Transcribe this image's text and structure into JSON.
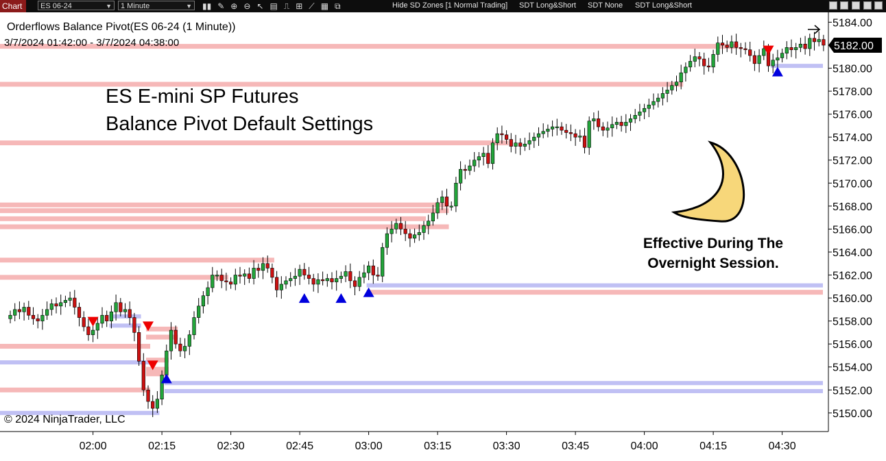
{
  "toolbar": {
    "tab": "Chart",
    "instrument": "ES 06-24",
    "interval": "1 Minute",
    "items": [
      "Hide SD Zones [1 Normal Trading]",
      "SDT Long&Short",
      "SDT None",
      "SDT Long&Short"
    ]
  },
  "header": {
    "indicator": "Orderflows Balance Pivot(ES 06-24 (1 Minute))",
    "range": "3/7/2024 01:42:00 - 3/7/2024 04:38:00"
  },
  "overlay": {
    "line1": "ES E-mini SP Futures",
    "line2": "Balance Pivot Default Settings",
    "note1": "Effective During The",
    "note2": "Overnight Session.",
    "copyright": "© 2024 NinjaTrader, LLC"
  },
  "colors": {
    "up_candle": "#22a53a",
    "down_candle": "#cc1111",
    "resistance_zone": "#f6b8b8",
    "support_zone": "#c0c0f4",
    "sell_marker": "#ee0000",
    "buy_marker": "#0000dd",
    "moon": "#f7d77a"
  },
  "chart_data": {
    "type": "candlestick",
    "ylim": [
      5148.5,
      5184.8
    ],
    "yticks": [
      5150,
      5152,
      5154,
      5156,
      5158,
      5160,
      5162,
      5164,
      5166,
      5168,
      5170,
      5172,
      5174,
      5176,
      5178,
      5180,
      5182,
      5184
    ],
    "ytick_labels": [
      "5150.00",
      "5152.00",
      "5154.00",
      "5156.00",
      "5158.00",
      "5160.00",
      "5162.00",
      "5164.00",
      "5166.00",
      "5168.00",
      "5170.00",
      "5172.00",
      "5174.00",
      "5176.00",
      "5178.00",
      "5180.00",
      "5182.00",
      "5184.00"
    ],
    "last_price": 5182.0,
    "last_price_label": "5182.00",
    "xtick_labels": [
      {
        "t": "02:00",
        "i": 18
      },
      {
        "t": "02:15",
        "i": 33
      },
      {
        "t": "02:30",
        "i": 48
      },
      {
        "t": "02:45",
        "i": 63
      },
      {
        "t": "03:00",
        "i": 78
      },
      {
        "t": "03:15",
        "i": 93
      },
      {
        "t": "03:30",
        "i": 108
      },
      {
        "t": "03:45",
        "i": 123
      },
      {
        "t": "04:00",
        "i": 138
      },
      {
        "t": "04:15",
        "i": 153
      },
      {
        "t": "04:30",
        "i": 168
      }
    ],
    "closes": [
      5158.5,
      5159.0,
      5158.8,
      5159.2,
      5158.5,
      5158.2,
      5158.0,
      5158.5,
      5159.0,
      5159.5,
      5159.3,
      5159.6,
      5159.8,
      5160.0,
      5159.2,
      5158.3,
      5157.5,
      5156.8,
      5157.2,
      5157.8,
      5158.5,
      5158.0,
      5158.8,
      5159.6,
      5158.8,
      5159.0,
      5158.3,
      5157.0,
      5154.5,
      5152.0,
      5151.0,
      5150.4,
      5151.2,
      5153.3,
      5155.4,
      5157.2,
      5156.0,
      5155.4,
      5155.8,
      5156.8,
      5158.3,
      5159.3,
      5160.2,
      5160.9,
      5162.0,
      5162.0,
      5161.5,
      5161.4,
      5161.2,
      5162.0,
      5161.9,
      5162.1,
      5161.7,
      5162.6,
      5162.4,
      5163.0,
      5162.6,
      5161.8,
      5160.7,
      5161.2,
      5161.5,
      5161.7,
      5161.9,
      5162.5,
      5162.0,
      5161.7,
      5161.2,
      5161.6,
      5161.5,
      5161.7,
      5161.4,
      5161.7,
      5161.9,
      5162.3,
      5161.5,
      5161.0,
      5161.8,
      5162.2,
      5162.8,
      5162.0,
      5161.9,
      5164.4,
      5165.6,
      5166.0,
      5166.5,
      5166.0,
      5165.6,
      5165.2,
      5165.5,
      5165.7,
      5166.3,
      5166.7,
      5167.4,
      5168.3,
      5168.8,
      5168.0,
      5168.0,
      5170.0,
      5171.2,
      5171.1,
      5171.5,
      5172.0,
      5172.3,
      5172.6,
      5171.7,
      5173.5,
      5174.3,
      5174.2,
      5173.8,
      5173.2,
      5173.5,
      5173.2,
      5173.4,
      5173.7,
      5174.0,
      5174.3,
      5174.5,
      5174.7,
      5174.9,
      5174.9,
      5174.6,
      5174.4,
      5174.3,
      5174.0,
      5174.1,
      5173.1,
      5175.4,
      5175.6,
      5174.9,
      5174.6,
      5174.8,
      5175.1,
      5175.3,
      5175.0,
      5175.3,
      5175.6,
      5175.9,
      5176.2,
      5176.5,
      5176.8,
      5177.1,
      5177.4,
      5177.8,
      5178.1,
      5178.5,
      5178.8,
      5179.6,
      5180.1,
      5180.6,
      5181.0,
      5180.8,
      5180.2,
      5180.1,
      5181.2,
      5182.2,
      5182.0,
      5181.8,
      5182.3,
      5181.8,
      5181.7,
      5181.6,
      5181.1,
      5180.4,
      5181.1,
      5181.7,
      5180.2,
      5180.7,
      5180.9,
      5181.3,
      5181.8,
      5181.6,
      5181.8,
      5182.1,
      5181.7,
      5182.6,
      5182.3,
      5182.5,
      5182.0
    ],
    "resistance_zones": [
      {
        "price": 5181.9,
        "from": 0,
        "to": 158
      },
      {
        "price": 5178.6,
        "from": 0,
        "to": 146
      },
      {
        "price": 5173.5,
        "from": 0,
        "to": 108
      },
      {
        "price": 5168.1,
        "from": 0,
        "to": 95
      },
      {
        "price": 5167.6,
        "from": 0,
        "to": 95
      },
      {
        "price": 5166.9,
        "from": 0,
        "to": 90
      },
      {
        "price": 5166.2,
        "from": 0,
        "to": 95
      },
      {
        "price": 5163.3,
        "from": 0,
        "to": 57
      },
      {
        "price": 5161.8,
        "from": 0,
        "to": 47
      },
      {
        "price": 5160.5,
        "from": 78,
        "to": 178
      },
      {
        "price": 5157.3,
        "from": 30,
        "to": 36
      },
      {
        "price": 5156.6,
        "from": 30,
        "to": 36
      },
      {
        "price": 5155.8,
        "from": 0,
        "to": 30
      },
      {
        "price": 5154.6,
        "from": 30,
        "to": 34
      },
      {
        "price": 5153.8,
        "from": 30,
        "to": 34
      },
      {
        "price": 5153.4,
        "from": 30,
        "to": 34
      },
      {
        "price": 5152.0,
        "from": 0,
        "to": 30
      }
    ],
    "support_zones": [
      {
        "price": 5180.2,
        "from": 166,
        "to": 178
      },
      {
        "price": 5161.1,
        "from": 78,
        "to": 178
      },
      {
        "price": 5158.4,
        "from": 22,
        "to": 28
      },
      {
        "price": 5157.6,
        "from": 22,
        "to": 28
      },
      {
        "price": 5154.4,
        "from": 0,
        "to": 30
      },
      {
        "price": 5152.6,
        "from": 34,
        "to": 178
      },
      {
        "price": 5151.9,
        "from": 34,
        "to": 178
      },
      {
        "price": 5150.0,
        "from": 0,
        "to": 32
      }
    ],
    "sell_signals": [
      {
        "i": 18,
        "price": 5158.0
      },
      {
        "i": 30,
        "price": 5157.6
      },
      {
        "i": 31,
        "price": 5154.2
      },
      {
        "i": 165,
        "price": 5181.6
      }
    ],
    "buy_signals": [
      {
        "i": 34,
        "price": 5153.0
      },
      {
        "i": 64,
        "price": 5160.0
      },
      {
        "i": 72,
        "price": 5160.0
      },
      {
        "i": 78,
        "price": 5160.5
      },
      {
        "i": 167,
        "price": 5179.7
      }
    ]
  }
}
